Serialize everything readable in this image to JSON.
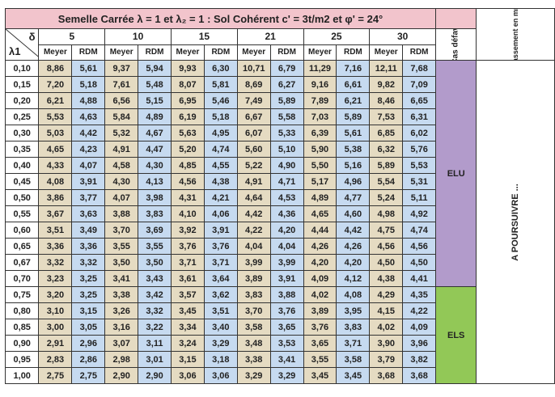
{
  "title": "Semelle Carrée λ = 1 et λ₂ = 1 : Sol Cohérent c' = 3t/m2 et φ' = 24°",
  "corner": {
    "delta_label": "δ",
    "lambda_label": "λ1"
  },
  "delta_values": [
    "5",
    "10",
    "15",
    "21",
    "25",
    "30"
  ],
  "method_labels": {
    "meyer": "Meyer",
    "rdm": "RDM"
  },
  "cas_header": "Cas défav.",
  "tassement_header": "Tassement en mm",
  "tassement_body": "A POURSUIVRE ...",
  "cas_labels": {
    "elu": "ELU",
    "els": "ELS"
  },
  "colors": {
    "title_bg": "#f2c4cc",
    "meyer_bg": "#e5dbc2",
    "rdm_bg": "#c6daf0",
    "elu_bg": "#b29bcb",
    "els_bg": "#92c857"
  },
  "rows": [
    {
      "lambda": "0,10",
      "values": [
        "8,86",
        "5,61",
        "9,37",
        "5,94",
        "9,93",
        "6,30",
        "10,71",
        "6,79",
        "11,29",
        "7,16",
        "12,11",
        "7,68"
      ]
    },
    {
      "lambda": "0,15",
      "values": [
        "7,20",
        "5,18",
        "7,61",
        "5,48",
        "8,07",
        "5,81",
        "8,69",
        "6,27",
        "9,16",
        "6,61",
        "9,82",
        "7,09"
      ]
    },
    {
      "lambda": "0,20",
      "values": [
        "6,21",
        "4,88",
        "6,56",
        "5,15",
        "6,95",
        "5,46",
        "7,49",
        "5,89",
        "7,89",
        "6,21",
        "8,46",
        "6,65"
      ]
    },
    {
      "lambda": "0,25",
      "values": [
        "5,53",
        "4,63",
        "5,84",
        "4,89",
        "6,19",
        "5,18",
        "6,67",
        "5,58",
        "7,03",
        "5,89",
        "7,53",
        "6,31"
      ]
    },
    {
      "lambda": "0,30",
      "values": [
        "5,03",
        "4,42",
        "5,32",
        "4,67",
        "5,63",
        "4,95",
        "6,07",
        "5,33",
        "6,39",
        "5,61",
        "6,85",
        "6,02"
      ]
    },
    {
      "lambda": "0,35",
      "values": [
        "4,65",
        "4,23",
        "4,91",
        "4,47",
        "5,20",
        "4,74",
        "5,60",
        "5,10",
        "5,90",
        "5,38",
        "6,32",
        "5,76"
      ]
    },
    {
      "lambda": "0,40",
      "values": [
        "4,33",
        "4,07",
        "4,58",
        "4,30",
        "4,85",
        "4,55",
        "5,22",
        "4,90",
        "5,50",
        "5,16",
        "5,89",
        "5,53"
      ]
    },
    {
      "lambda": "0,45",
      "values": [
        "4,08",
        "3,91",
        "4,30",
        "4,13",
        "4,56",
        "4,38",
        "4,91",
        "4,71",
        "5,17",
        "4,96",
        "5,54",
        "5,31"
      ]
    },
    {
      "lambda": "0,50",
      "values": [
        "3,86",
        "3,77",
        "4,07",
        "3,98",
        "4,31",
        "4,21",
        "4,64",
        "4,53",
        "4,89",
        "4,77",
        "5,24",
        "5,11"
      ]
    },
    {
      "lambda": "0,55",
      "values": [
        "3,67",
        "3,63",
        "3,88",
        "3,83",
        "4,10",
        "4,06",
        "4,42",
        "4,36",
        "4,65",
        "4,60",
        "4,98",
        "4,92"
      ]
    },
    {
      "lambda": "0,60",
      "values": [
        "3,51",
        "3,49",
        "3,70",
        "3,69",
        "3,92",
        "3,91",
        "4,22",
        "4,20",
        "4,44",
        "4,42",
        "4,75",
        "4,74"
      ]
    },
    {
      "lambda": "0,65",
      "values": [
        "3,36",
        "3,36",
        "3,55",
        "3,55",
        "3,76",
        "3,76",
        "4,04",
        "4,04",
        "4,26",
        "4,26",
        "4,56",
        "4,56"
      ]
    },
    {
      "lambda": "0,67",
      "values": [
        "3,32",
        "3,32",
        "3,50",
        "3,50",
        "3,71",
        "3,71",
        "3,99",
        "3,99",
        "4,20",
        "4,20",
        "4,50",
        "4,50"
      ]
    },
    {
      "lambda": "0,70",
      "values": [
        "3,23",
        "3,25",
        "3,41",
        "3,43",
        "3,61",
        "3,64",
        "3,89",
        "3,91",
        "4,09",
        "4,12",
        "4,38",
        "4,41"
      ]
    },
    {
      "lambda": "0,75",
      "values": [
        "3,20",
        "3,25",
        "3,38",
        "3,42",
        "3,57",
        "3,62",
        "3,83",
        "3,88",
        "4,02",
        "4,08",
        "4,29",
        "4,35"
      ]
    },
    {
      "lambda": "0,80",
      "values": [
        "3,10",
        "3,15",
        "3,26",
        "3,32",
        "3,45",
        "3,51",
        "3,70",
        "3,76",
        "3,89",
        "3,95",
        "4,15",
        "4,22"
      ]
    },
    {
      "lambda": "0,85",
      "values": [
        "3,00",
        "3,05",
        "3,16",
        "3,22",
        "3,34",
        "3,40",
        "3,58",
        "3,65",
        "3,76",
        "3,83",
        "4,02",
        "4,09"
      ]
    },
    {
      "lambda": "0,90",
      "values": [
        "2,91",
        "2,96",
        "3,07",
        "3,11",
        "3,24",
        "3,29",
        "3,48",
        "3,53",
        "3,65",
        "3,71",
        "3,90",
        "3,96"
      ]
    },
    {
      "lambda": "0,95",
      "values": [
        "2,83",
        "2,86",
        "2,98",
        "3,01",
        "3,15",
        "3,18",
        "3,38",
        "3,41",
        "3,55",
        "3,58",
        "3,79",
        "3,82"
      ]
    },
    {
      "lambda": "1,00",
      "values": [
        "2,75",
        "2,75",
        "2,90",
        "2,90",
        "3,06",
        "3,06",
        "3,29",
        "3,29",
        "3,45",
        "3,45",
        "3,68",
        "3,68"
      ]
    }
  ]
}
